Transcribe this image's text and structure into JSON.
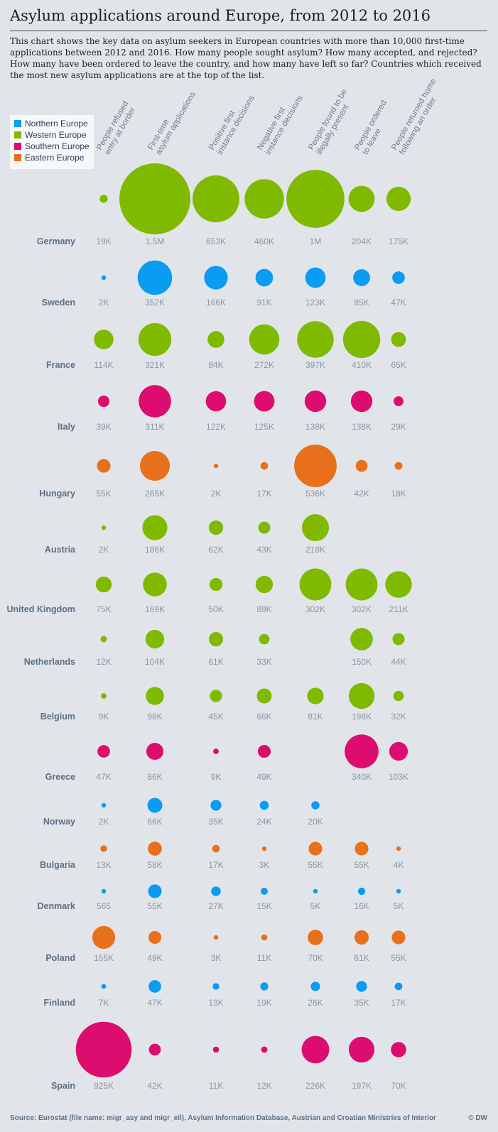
{
  "title": "Asylum applications around Europe, from 2012 to 2016",
  "subtitle": "This chart shows the key data on asylum seekers in European countries with more than 10,000 first-time applications between 2012 and 2016. How many people sought asylum? How many accepted, and rejected? How many have been ordered to leave the country, and how many have left so far? Countries which received the most new asylum applications are at the top of the list.",
  "legend": [
    {
      "label": "Northern Europe",
      "color": "#0a9bf2"
    },
    {
      "label": "Western Europe",
      "color": "#80ba00"
    },
    {
      "label": "Southern Europe",
      "color": "#dc0d6e"
    },
    {
      "label": "Eastern Europe",
      "color": "#e8701a"
    }
  ],
  "footer": {
    "source": "Source: Eurostat (file name: migr_asy and migr_eil), Asylum Information Database, Austrian and Croatian Ministries of Interior",
    "credit": "© DW"
  },
  "chart_data": {
    "type": "bubble-grid",
    "columns": [
      {
        "line1": "People refused",
        "line2": "entry at border"
      },
      {
        "line1": "First-time",
        "line2": "asylum applications"
      },
      {
        "line1": "Positive first",
        "line2": "instance decisions"
      },
      {
        "line1": "Negative first",
        "line2": "instance decisions"
      },
      {
        "line1": "People found to be",
        "line2": "illegally present"
      },
      {
        "line1": "People ordered",
        "line2": "to leave"
      },
      {
        "line1": "People returned home",
        "line2": "following an order"
      }
    ],
    "rows": [
      {
        "country": "Germany",
        "region": "Western Europe",
        "values": [
          19000,
          1500000,
          653000,
          460000,
          1000000,
          204000,
          175000
        ],
        "labels": [
          "19K",
          "1.5M",
          "653K",
          "460K",
          "1M",
          "204K",
          "175K"
        ]
      },
      {
        "country": "Sweden",
        "region": "Northern Europe",
        "values": [
          2000,
          352000,
          166000,
          91000,
          123000,
          85000,
          47000
        ],
        "labels": [
          "2K",
          "352K",
          "166K",
          "91K",
          "123K",
          "85K",
          "47K"
        ]
      },
      {
        "country": "France",
        "region": "Western Europe",
        "values": [
          114000,
          321000,
          84000,
          272000,
          397000,
          410000,
          65000
        ],
        "labels": [
          "114K",
          "321K",
          "84K",
          "272K",
          "397K",
          "410K",
          "65K"
        ]
      },
      {
        "country": "Italy",
        "region": "Southern Europe",
        "values": [
          39000,
          311000,
          122000,
          125000,
          138000,
          138000,
          29000
        ],
        "labels": [
          "39K",
          "311K",
          "122K",
          "125K",
          "138K",
          "138K",
          "29K"
        ]
      },
      {
        "country": "Hungary",
        "region": "Eastern Europe",
        "values": [
          55000,
          265000,
          2000,
          17000,
          536000,
          42000,
          18000
        ],
        "labels": [
          "55K",
          "265K",
          "2K",
          "17K",
          "536K",
          "42K",
          "18K"
        ]
      },
      {
        "country": "Austria",
        "region": "Western Europe",
        "values": [
          2000,
          186000,
          62000,
          43000,
          218000,
          null,
          null
        ],
        "labels": [
          "2K",
          "186K",
          "62K",
          "43K",
          "218K",
          "",
          ""
        ]
      },
      {
        "country": "United Kingdom",
        "region": "Western Europe",
        "values": [
          75000,
          169000,
          50000,
          89000,
          302000,
          302000,
          211000
        ],
        "labels": [
          "75K",
          "169K",
          "50K",
          "89K",
          "302K",
          "302K",
          "211K"
        ]
      },
      {
        "country": "Netherlands",
        "region": "Western Europe",
        "values": [
          12000,
          104000,
          61000,
          33000,
          null,
          150000,
          44000
        ],
        "labels": [
          "12K",
          "104K",
          "61K",
          "33K",
          "",
          "150K",
          "44K"
        ]
      },
      {
        "country": "Belgium",
        "region": "Western Europe",
        "values": [
          9000,
          98000,
          45000,
          66000,
          81000,
          198000,
          32000
        ],
        "labels": [
          "9K",
          "98K",
          "45K",
          "66K",
          "81K",
          "198K",
          "32K"
        ]
      },
      {
        "country": "Greece",
        "region": "Southern Europe",
        "values": [
          47000,
          86000,
          9000,
          49000,
          null,
          340000,
          103000
        ],
        "labels": [
          "47K",
          "86K",
          "9K",
          "49K",
          "",
          "340K",
          "103K"
        ]
      },
      {
        "country": "Norway",
        "region": "Northern Europe",
        "values": [
          2000,
          66000,
          35000,
          24000,
          20000,
          null,
          null
        ],
        "labels": [
          "2K",
          "66K",
          "35K",
          "24K",
          "20K",
          "",
          ""
        ]
      },
      {
        "country": "Bulgaria",
        "region": "Eastern Europe",
        "values": [
          13000,
          58000,
          17000,
          3000,
          55000,
          55000,
          4000
        ],
        "labels": [
          "13K",
          "58K",
          "17K",
          "3K",
          "55K",
          "55K",
          "4K"
        ]
      },
      {
        "country": "Denmark",
        "region": "Northern Europe",
        "values": [
          565,
          55000,
          27000,
          15000,
          5000,
          16000,
          5000
        ],
        "labels": [
          "565",
          "55K",
          "27K",
          "15K",
          "5K",
          "16K",
          "5K"
        ]
      },
      {
        "country": "Poland",
        "region": "Eastern Europe",
        "values": [
          155000,
          49000,
          3000,
          11000,
          70000,
          61000,
          55000
        ],
        "labels": [
          "155K",
          "49K",
          "3K",
          "11K",
          "70K",
          "61K",
          "55K"
        ]
      },
      {
        "country": "Finland",
        "region": "Northern Europe",
        "values": [
          7000,
          47000,
          13000,
          19000,
          26000,
          35000,
          17000
        ],
        "labels": [
          "7K",
          "47K",
          "13K",
          "19K",
          "26K",
          "35K",
          "17K"
        ]
      },
      {
        "country": "Spain",
        "region": "Southern Europe",
        "values": [
          925000,
          42000,
          11000,
          12000,
          226000,
          197000,
          70000
        ],
        "labels": [
          "925K",
          "42K",
          "11K",
          "12K",
          "226K",
          "197K",
          "70K"
        ]
      }
    ]
  }
}
